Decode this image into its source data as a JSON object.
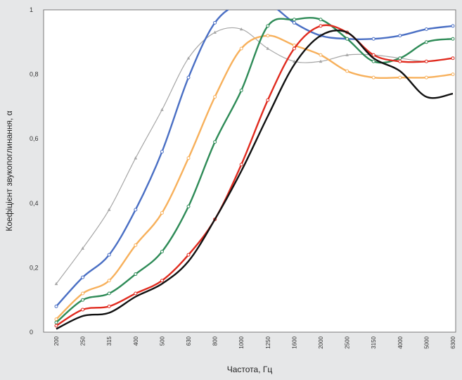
{
  "chart_data": {
    "type": "line",
    "title": "",
    "xlabel": "Частота, Гц",
    "ylabel": "Коефіцієнт звукопоглинання, α",
    "categories": [
      "200",
      "250",
      "315",
      "400",
      "500",
      "630",
      "800",
      "1000",
      "1250",
      "1600",
      "2000",
      "2500",
      "3150",
      "4000",
      "5000",
      "6300"
    ],
    "ylim": [
      0,
      1
    ],
    "yticks": [
      "0",
      "0,2",
      "0,4",
      "0,6",
      "0,8",
      "1"
    ],
    "grid": false,
    "legend": "none",
    "series": [
      {
        "color": "#a6a6a6",
        "marker": "triangle",
        "values": [
          0.15,
          0.26,
          0.38,
          0.54,
          0.69,
          0.85,
          0.93,
          0.94,
          0.88,
          0.84,
          0.84,
          0.86,
          0.86,
          0.85,
          0.84,
          0.85
        ]
      },
      {
        "color": "#4a6fc4",
        "marker": "circle",
        "values": [
          0.08,
          0.17,
          0.24,
          0.38,
          0.56,
          0.79,
          0.96,
          1.02,
          1.02,
          0.96,
          0.92,
          0.91,
          0.91,
          0.92,
          0.94,
          0.95
        ]
      },
      {
        "color": "#f7b05b",
        "marker": "circle",
        "values": [
          0.04,
          0.12,
          0.16,
          0.27,
          0.37,
          0.54,
          0.73,
          0.88,
          0.92,
          0.89,
          0.86,
          0.81,
          0.79,
          0.79,
          0.79,
          0.8
        ]
      },
      {
        "color": "#2e8b57",
        "marker": "circle",
        "values": [
          0.03,
          0.1,
          0.12,
          0.18,
          0.25,
          0.39,
          0.59,
          0.75,
          0.95,
          0.97,
          0.97,
          0.91,
          0.84,
          0.85,
          0.9,
          0.91
        ]
      },
      {
        "color": "#e02b1f",
        "marker": "circle",
        "values": [
          0.02,
          0.07,
          0.08,
          0.12,
          0.16,
          0.24,
          0.35,
          0.52,
          0.72,
          0.88,
          0.95,
          0.93,
          0.86,
          0.84,
          0.84,
          0.85
        ]
      },
      {
        "color": "#111111",
        "marker": "none",
        "values": [
          0.01,
          0.05,
          0.06,
          0.11,
          0.15,
          0.22,
          0.35,
          0.5,
          0.67,
          0.83,
          0.92,
          0.93,
          0.85,
          0.81,
          0.73,
          0.74
        ]
      }
    ]
  }
}
